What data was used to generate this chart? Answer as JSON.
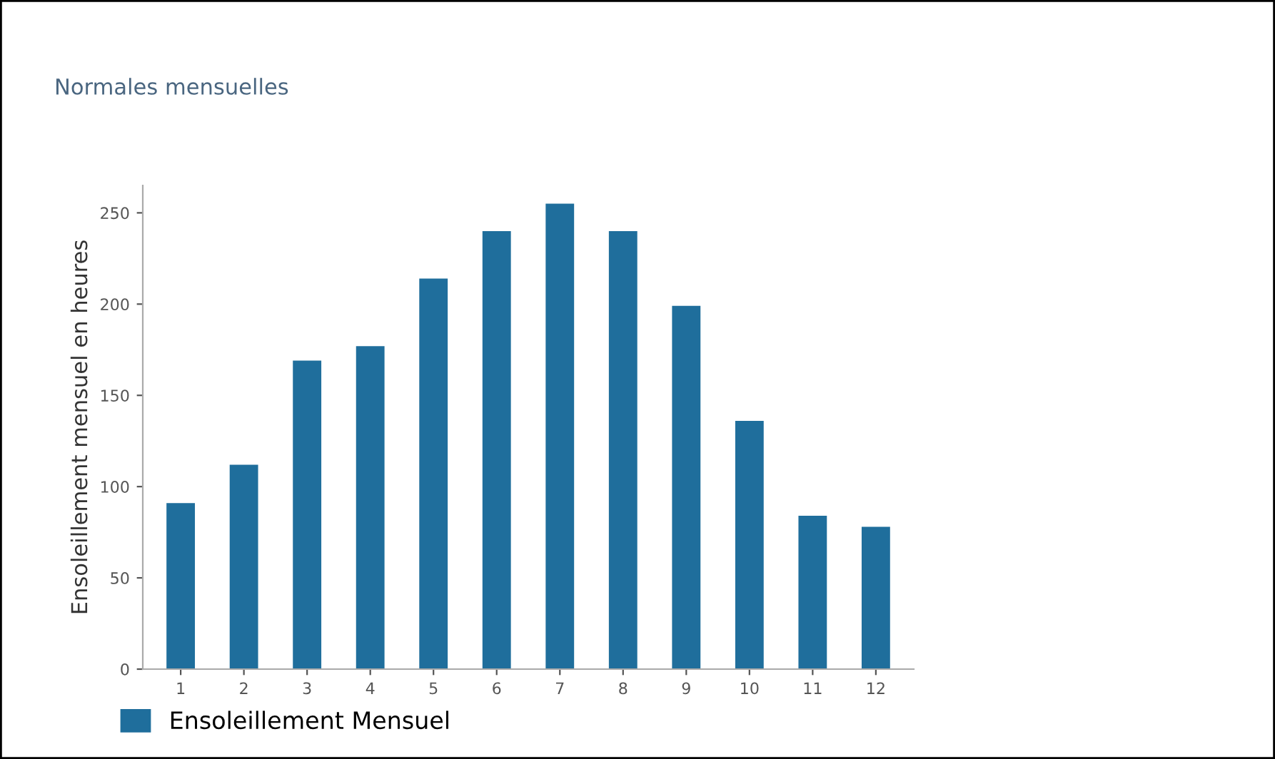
{
  "chart_data": {
    "type": "bar",
    "title": "Normales mensuelles",
    "ylabel": "Ensoleillement mensuel en heures",
    "categories": [
      "1",
      "2",
      "3",
      "4",
      "5",
      "6",
      "7",
      "8",
      "9",
      "10",
      "11",
      "12"
    ],
    "series": [
      {
        "name": "Ensoleillement Mensuel",
        "color": "#1f6e9c",
        "values": [
          91,
          112,
          169,
          177,
          214,
          240,
          255,
          240,
          199,
          136,
          84,
          78
        ]
      }
    ],
    "ylim": [
      0,
      265
    ],
    "yticks": [
      0,
      50,
      100,
      150,
      200,
      250
    ],
    "grid": false,
    "legend": "bottom left"
  }
}
